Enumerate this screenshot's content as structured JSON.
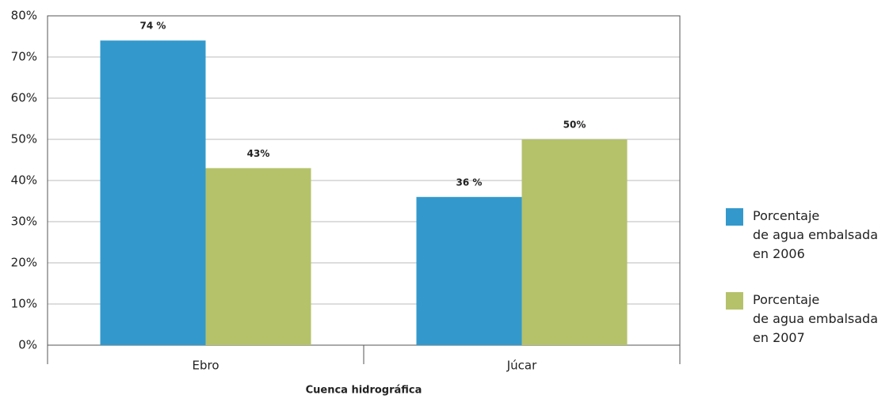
{
  "chart_data": {
    "type": "bar",
    "x_label": "Cuenca hidrográfica",
    "categories": [
      "Ebro",
      "Júcar"
    ],
    "series": [
      {
        "name": "Porcentaje\nde agua embalsada\nen 2006",
        "color": "#3399cc",
        "values": [
          74,
          36
        ],
        "value_labels": [
          "74 %",
          "36 %"
        ]
      },
      {
        "name": "Porcentaje\nde agua embalsada\nen 2007",
        "color": "#b5c26a",
        "values": [
          43,
          50
        ],
        "value_labels": [
          "43%",
          "50%"
        ]
      }
    ],
    "ylim": [
      0,
      80
    ],
    "yticks": [
      {
        "value": 0,
        "label": "0%"
      },
      {
        "value": 10,
        "label": "10%"
      },
      {
        "value": 20,
        "label": "20%"
      },
      {
        "value": 30,
        "label": "30%"
      },
      {
        "value": 40,
        "label": "40%"
      },
      {
        "value": 50,
        "label": "50%"
      },
      {
        "value": 60,
        "label": "60%"
      },
      {
        "value": 70,
        "label": "70%"
      },
      {
        "value": 80,
        "label": "80%"
      }
    ],
    "grid": true,
    "legend": "right"
  }
}
